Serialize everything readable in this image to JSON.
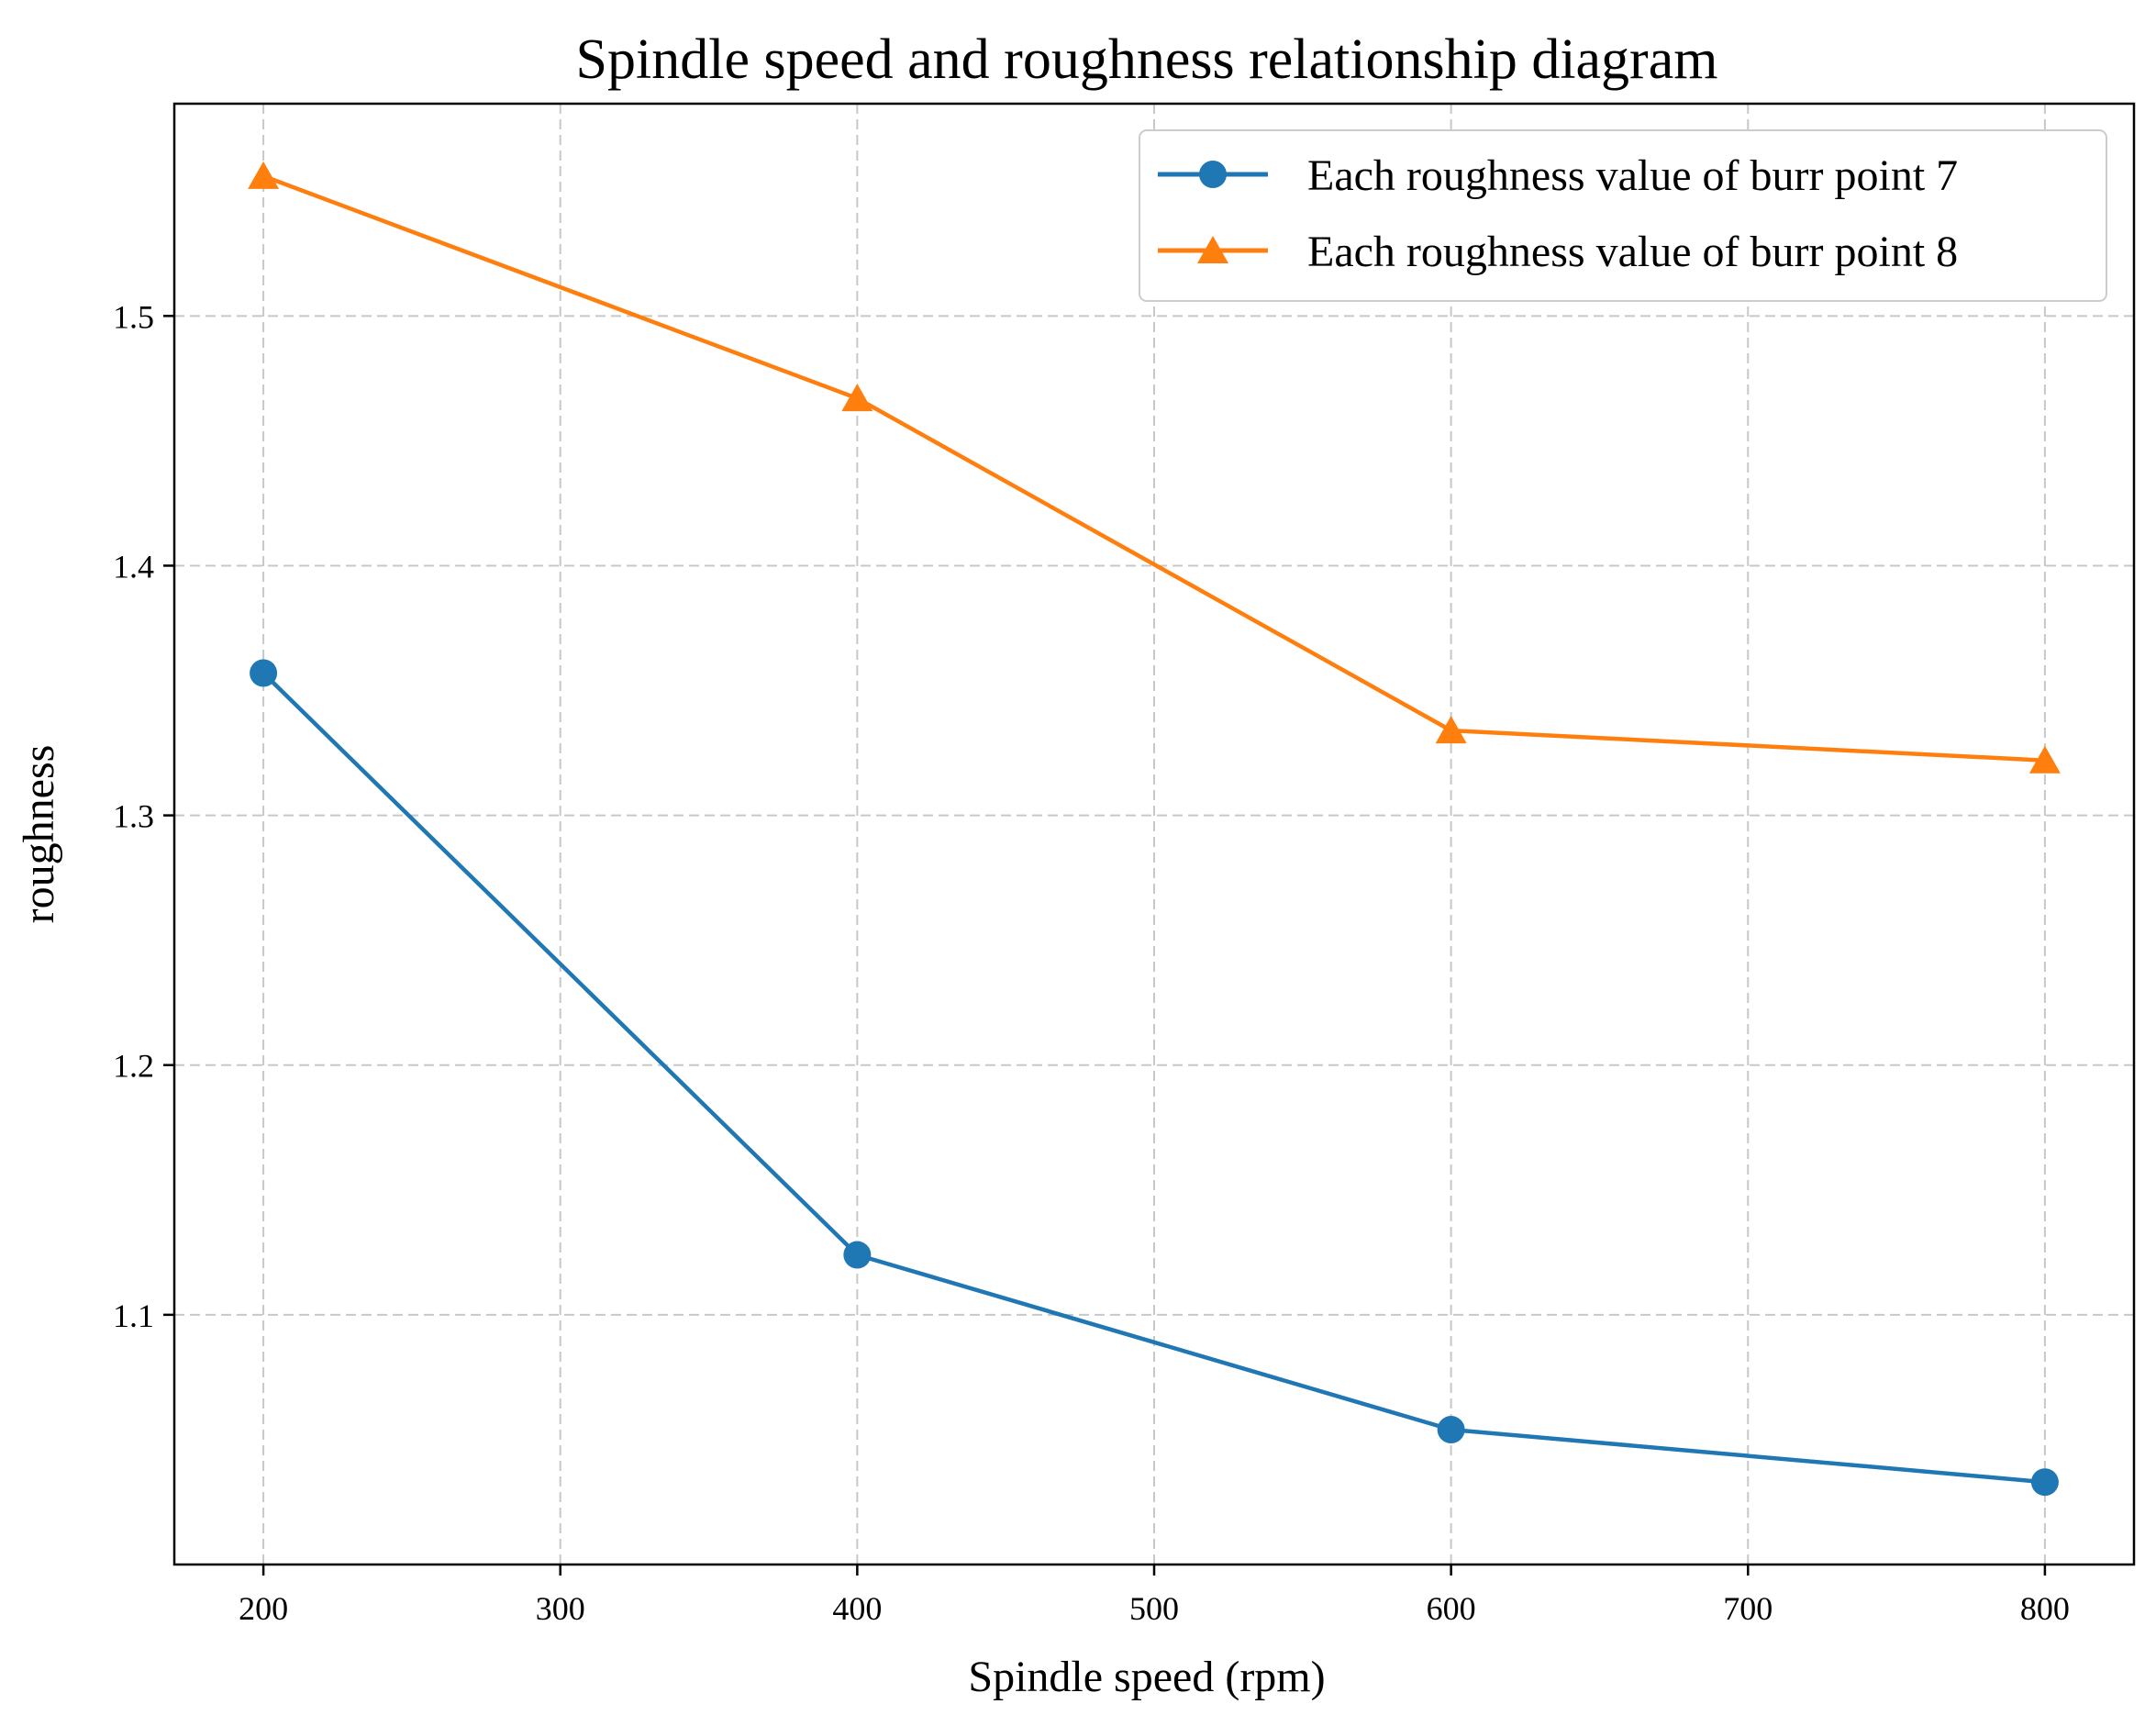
{
  "chart_data": {
    "type": "line",
    "title": "Spindle speed and roughness relationship diagram",
    "xlabel": "Spindle speed (rpm)",
    "ylabel": "roughness",
    "x": [
      200,
      400,
      600,
      800
    ],
    "xlim": [
      170,
      830
    ],
    "ylim": [
      1.0,
      1.585
    ],
    "xticks": [
      "200",
      "300",
      "400",
      "500",
      "600",
      "700",
      "800"
    ],
    "yticks": [
      "1.1",
      "1.2",
      "1.3",
      "1.4",
      "1.5"
    ],
    "grid": true,
    "legend_position": "top-right",
    "series": [
      {
        "name": "Each roughness value of burr point 7",
        "color": "#1f77b4",
        "marker": "circle",
        "values": [
          1.357,
          1.124,
          1.054,
          1.033
        ]
      },
      {
        "name": "Each roughness value of burr point 8",
        "color": "#ff7f0e",
        "marker": "triangle",
        "values": [
          1.556,
          1.467,
          1.334,
          1.322
        ]
      }
    ]
  }
}
